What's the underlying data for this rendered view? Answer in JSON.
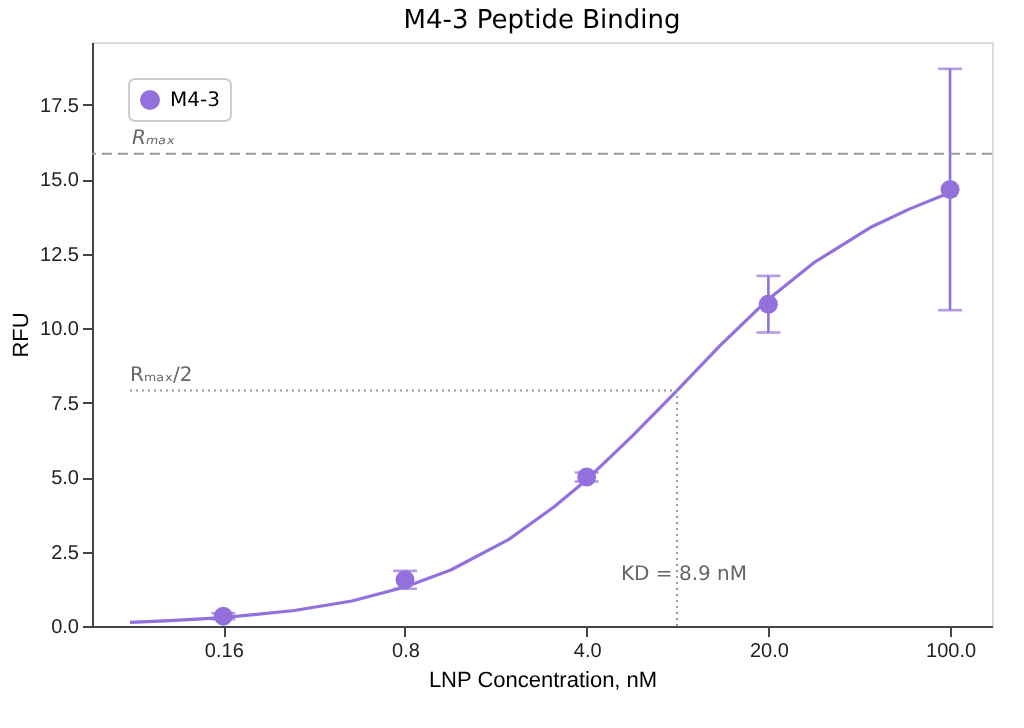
{
  "chart_data": {
    "type": "scatter",
    "title": "M4-3 Peptide Binding",
    "xlabel": "LNP Concentration, nM",
    "ylabel": "RFU",
    "log": "x",
    "xlim": [
      0.05,
      145
    ],
    "xticks": [
      0.16,
      0.8,
      {
        "value": 4,
        "label": "4.0"
      },
      {
        "value": 20,
        "label": "20.0"
      },
      {
        "value": 100,
        "label": "100.0"
      }
    ],
    "ylim": [
      0,
      19.6
    ],
    "yticks": [
      {
        "value": 0,
        "label": "0.0"
      },
      2.5,
      {
        "value": 5,
        "label": "5.0"
      },
      7.5,
      {
        "value": 10,
        "label": "10.0"
      },
      12.5,
      {
        "value": 15,
        "label": "15.0"
      },
      17.5
    ],
    "grid": false,
    "legend": "top left",
    "marker": "circle",
    "series": [
      {
        "name": "M4-3",
        "color": "#9370db",
        "x": [
          0.16,
          0.8,
          4,
          20,
          100
        ],
        "values": [
          0.33,
          1.55,
          5.0,
          10.8,
          14.65
        ],
        "errors": [
          0.1,
          0.3,
          0.15,
          0.95,
          4.05
        ]
      },
      {
        "type": "line",
        "color": "#9370db",
        "line_style": "solid",
        "marker": "none",
        "x": [
          0.07,
          0.1,
          0.16,
          0.3,
          0.5,
          0.8,
          1.2,
          2,
          3,
          4,
          6,
          8.9,
          13,
          20,
          30,
          50,
          70,
          100
        ],
        "values": [
          0.12,
          0.18,
          0.28,
          0.52,
          0.84,
          1.31,
          1.88,
          2.9,
          4.0,
          4.91,
          6.38,
          7.9,
          9.4,
          10.97,
          12.2,
          13.4,
          14.0,
          14.55
        ]
      },
      {
        "type": "line",
        "color": "#999999",
        "line_style": "dotted",
        "marker": "none",
        "x": [
          0.07,
          8.9
        ],
        "values": [
          7.9,
          7.9
        ]
      },
      {
        "type": "line",
        "color": "#999999",
        "line_style": "dotted",
        "marker": "none",
        "x": [
          8.9,
          8.9
        ],
        "values": [
          0,
          7.9
        ]
      }
    ],
    "ref_lines": [
      {
        "axis": "y",
        "value": 15.85,
        "label": "Rₘₐₓ",
        "color": "#999999",
        "line_style": "dashed"
      }
    ],
    "annotations": [
      {
        "text": "Rₘₐₓ/2",
        "x": 0.07,
        "y": 7.9
      },
      {
        "text": "KD = 8.9 nM",
        "x": 8.9,
        "y": 1.2
      }
    ]
  }
}
